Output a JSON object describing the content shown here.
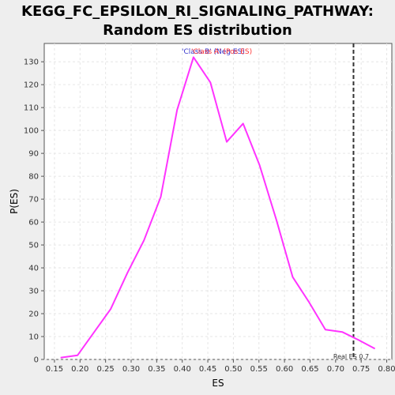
{
  "chart_data": {
    "type": "line",
    "title": "KEGG_FC_EPSILON_RI_SIGNALING_PATHWAY:",
    "subtitle": "Random ES distribution",
    "xlabel": "ES",
    "ylabel": "P(ES)",
    "xlim": [
      0.13,
      0.81
    ],
    "ylim": [
      0,
      138
    ],
    "x_ticks": [
      "0.15",
      "0.20",
      "0.25",
      "0.30",
      "0.35",
      "0.40",
      "0.45",
      "0.50",
      "0.55",
      "0.60",
      "0.65",
      "0.70",
      "0.75",
      "0.80"
    ],
    "y_ticks": [
      "0",
      "10",
      "20",
      "30",
      "40",
      "50",
      "60",
      "70",
      "80",
      "90",
      "100",
      "110",
      "120",
      "130"
    ],
    "grid": true,
    "legend": {
      "placement": "top-center",
      "entries": [
        {
          "label": "'Class B' (Neg ES)",
          "color": "#3333cc"
        },
        {
          "label": "'Class A' (Pos ES)",
          "color": "#ff3333"
        }
      ]
    },
    "series": [
      {
        "color": "#ff33ff",
        "x": [
          0.162,
          0.195,
          0.26,
          0.293,
          0.325,
          0.358,
          0.39,
          0.422,
          0.455,
          0.487,
          0.519,
          0.551,
          0.584,
          0.616,
          0.648,
          0.68,
          0.713,
          0.745,
          0.777
        ],
        "y": [
          0.8,
          1.8,
          22,
          38,
          52,
          71,
          109,
          132,
          121,
          95,
          103,
          85,
          61,
          36,
          25,
          13,
          12,
          8.5,
          4.7
        ]
      }
    ],
    "real_es": {
      "x": 0.735,
      "label": "Real ES 0.7"
    }
  }
}
